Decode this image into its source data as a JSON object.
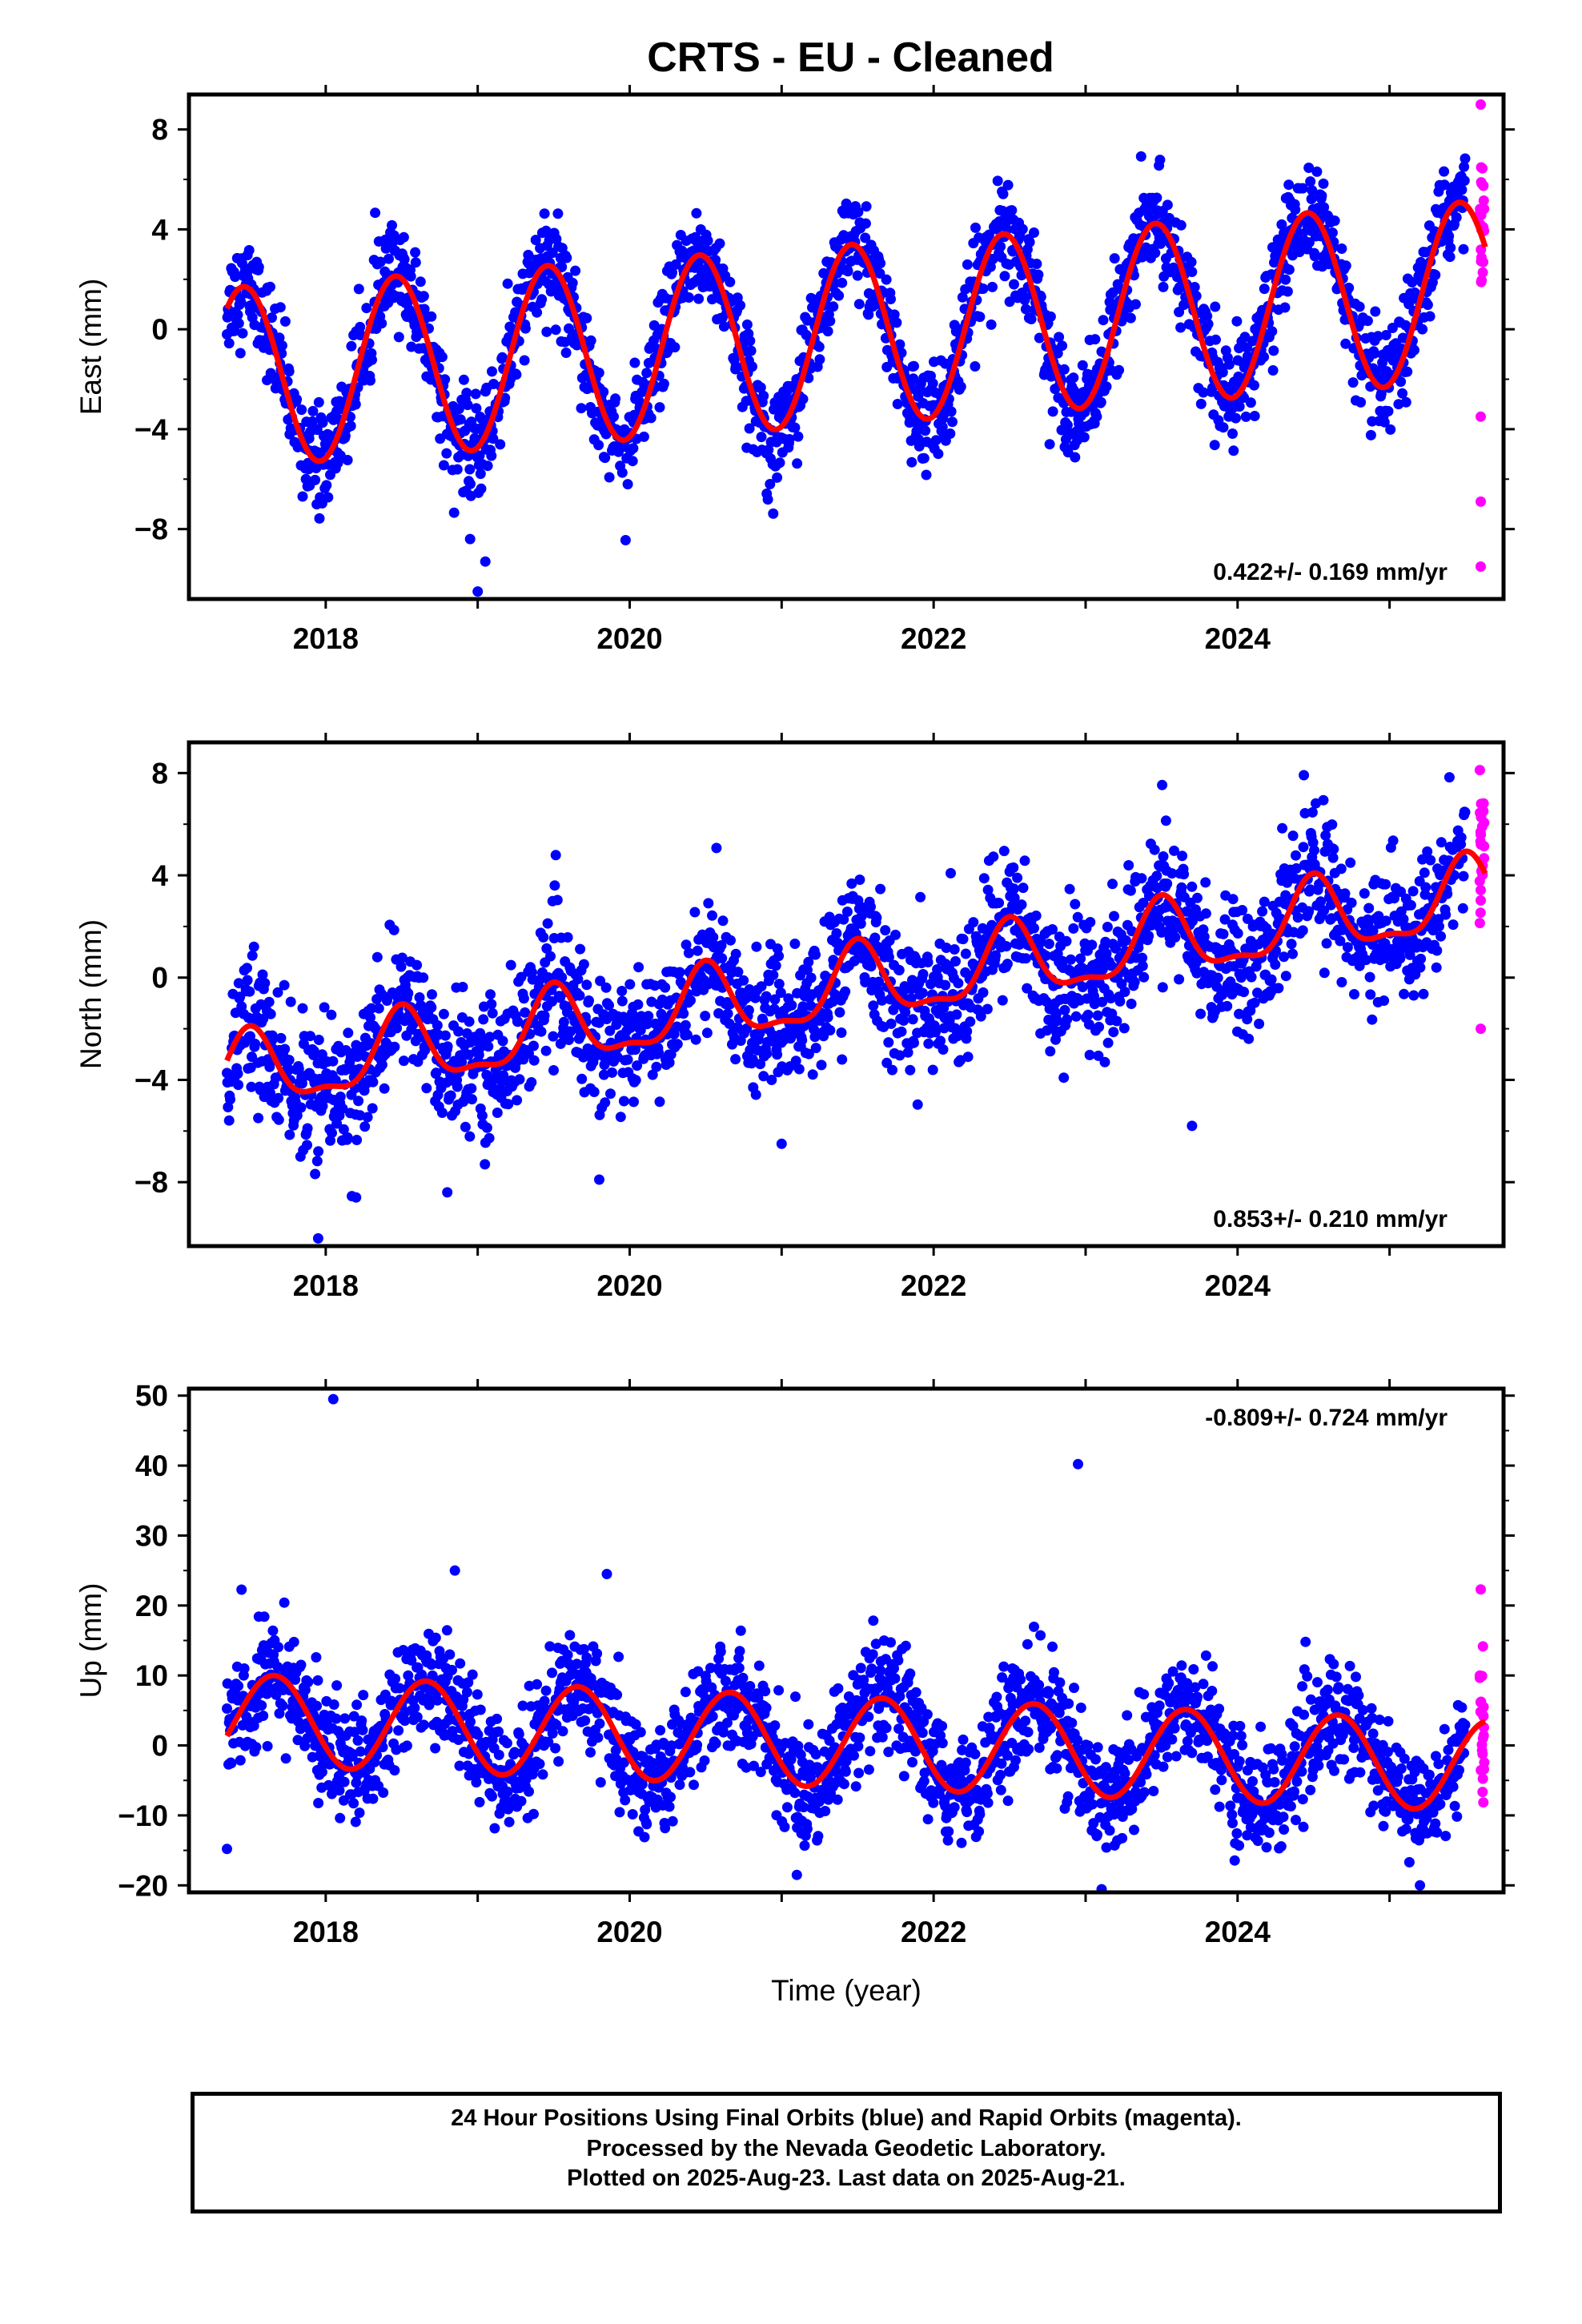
{
  "figure": {
    "title": "CRTS  - EU - Cleaned",
    "xlabel": "Time (year)",
    "footer": [
      "24 Hour Positions Using Final Orbits (blue) and Rapid Orbits (magenta).",
      "Processed by the Nevada Geodetic Laboratory.",
      "Plotted on 2025-Aug-23. Last data on 2025-Aug-21."
    ]
  },
  "colors": {
    "final": "#0000ff",
    "rapid": "#ff00ff",
    "model": "#ff0000",
    "frame": "#000000"
  },
  "chart_data": [
    {
      "type": "scatter",
      "ylabel": "East (mm)",
      "rate_text": "0.422+/- 0.169 mm/yr",
      "xlim": [
        2017.1,
        2025.75
      ],
      "ylim": [
        -10.8,
        9.4
      ],
      "xticks": [
        2018,
        2020,
        2022,
        2024
      ],
      "yticks": [
        -8,
        -4,
        0,
        4,
        8
      ],
      "ytick_labels": [
        "−8",
        "−4",
        "0",
        "4",
        "8"
      ],
      "data_span": [
        2017.35,
        2025.5
      ],
      "rapid_span": [
        2025.5,
        2025.63
      ],
      "model": {
        "intercept_at_2021": -0.4,
        "rate": 0.422,
        "annual_amplitude": 3.6,
        "annual_peak_phase": 0.46,
        "series_start_value": 1.3,
        "series_end_value": 2.0,
        "noise_sd": 1.0
      },
      "outliers": [
        [
          2018.95,
          -8.4
        ],
        [
          2019.0,
          -10.5
        ],
        [
          2019.05,
          -9.3
        ],
        [
          2025.6,
          9.0
        ],
        [
          2025.6,
          -9.5
        ],
        [
          2025.6,
          -6.9
        ],
        [
          2025.6,
          -3.5
        ]
      ]
    },
    {
      "type": "scatter",
      "ylabel": "North (mm)",
      "rate_text": "0.853+/- 0.210 mm/yr",
      "xlim": [
        2017.1,
        2025.75
      ],
      "ylim": [
        -10.5,
        9.2
      ],
      "xticks": [
        2018,
        2020,
        2022,
        2024
      ],
      "yticks": [
        -8,
        -4,
        0,
        4,
        8
      ],
      "ytick_labels": [
        "−8",
        "−4",
        "0",
        "4",
        "8"
      ],
      "data_span": [
        2017.35,
        2025.5
      ],
      "rapid_span": [
        2025.5,
        2025.63
      ],
      "model": {
        "intercept_at_2021": -0.8,
        "rate": 0.853,
        "annual_amplitude": 1.4,
        "annual_peak_phase": 0.5,
        "semiannual_amplitude": 0.5,
        "series_start_value": -2.9,
        "series_end_value": 3.9,
        "noise_sd": 1.3
      },
      "outliers": [
        [
          2017.95,
          -10.2
        ],
        [
          2018.2,
          -8.6
        ],
        [
          2018.8,
          -8.4
        ],
        [
          2019.8,
          -7.9
        ],
        [
          2021.0,
          -6.5
        ],
        [
          2023.7,
          -5.8
        ],
        [
          2025.6,
          -2.0
        ]
      ]
    },
    {
      "type": "scatter",
      "ylabel": "Up (mm)",
      "rate_text": "-0.809+/- 0.724 mm/yr",
      "xlim": [
        2017.1,
        2025.75
      ],
      "ylim": [
        -21,
        51
      ],
      "xticks": [
        2018,
        2020,
        2022,
        2024
      ],
      "yticks": [
        -20,
        -10,
        0,
        10,
        20,
        30,
        40,
        50
      ],
      "ytick_labels": [
        "−20",
        "−10",
        "0",
        "10",
        "20",
        "30",
        "40",
        "50"
      ],
      "data_span": [
        2017.35,
        2025.5
      ],
      "rapid_span": [
        2025.5,
        2025.63
      ],
      "model": {
        "intercept_at_2021": 0.8,
        "rate": -0.809,
        "annual_amplitude": 6.5,
        "annual_peak_phase": 0.66,
        "series_start_value": 0.5,
        "series_end_value": 5.5,
        "noise_sd": 4.0
      },
      "outliers": [
        [
          2018.05,
          49.5
        ],
        [
          2022.95,
          40.2
        ],
        [
          2019.85,
          24.5
        ],
        [
          2018.85,
          25.0
        ],
        [
          2017.35,
          -14.8
        ],
        [
          2021.1,
          -18.5
        ],
        [
          2025.2,
          -20.0
        ],
        [
          2025.6,
          22.3
        ]
      ]
    }
  ]
}
